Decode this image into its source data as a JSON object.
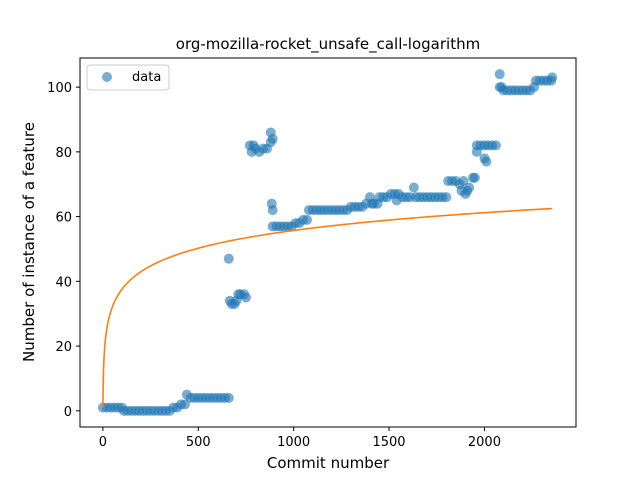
{
  "chart_data": {
    "type": "scatter",
    "title": "org-mozilla-rocket_unsafe_call-logarithm",
    "xlabel": "Commit number",
    "ylabel": "Number of instance of a feature",
    "xlim": [
      -120,
      2480
    ],
    "ylim": [
      -5,
      109
    ],
    "xticks": [
      0,
      500,
      1000,
      1500,
      2000
    ],
    "yticks": [
      0,
      20,
      40,
      60,
      80,
      100
    ],
    "legend": {
      "position": "top-left",
      "entries": [
        "data"
      ]
    },
    "colors": {
      "data": "#1f77b4",
      "fit": "#ff7f0e"
    },
    "series": [
      {
        "name": "data",
        "kind": "scatter",
        "points": [
          [
            0,
            1
          ],
          [
            20,
            1
          ],
          [
            40,
            1
          ],
          [
            60,
            1
          ],
          [
            80,
            1
          ],
          [
            100,
            1
          ],
          [
            110,
            0
          ],
          [
            130,
            0
          ],
          [
            150,
            0
          ],
          [
            170,
            0
          ],
          [
            190,
            0
          ],
          [
            210,
            0
          ],
          [
            230,
            0
          ],
          [
            250,
            0
          ],
          [
            270,
            0
          ],
          [
            290,
            0
          ],
          [
            310,
            0
          ],
          [
            330,
            0
          ],
          [
            350,
            0
          ],
          [
            370,
            1
          ],
          [
            390,
            1
          ],
          [
            410,
            2
          ],
          [
            430,
            2
          ],
          [
            440,
            5
          ],
          [
            460,
            4
          ],
          [
            480,
            4
          ],
          [
            500,
            4
          ],
          [
            520,
            4
          ],
          [
            540,
            4
          ],
          [
            560,
            4
          ],
          [
            580,
            4
          ],
          [
            600,
            4
          ],
          [
            620,
            4
          ],
          [
            640,
            4
          ],
          [
            660,
            4
          ],
          [
            660,
            47
          ],
          [
            665,
            34
          ],
          [
            675,
            33
          ],
          [
            690,
            33
          ],
          [
            700,
            34
          ],
          [
            710,
            36
          ],
          [
            720,
            36
          ],
          [
            740,
            36
          ],
          [
            750,
            35
          ],
          [
            770,
            82
          ],
          [
            780,
            80
          ],
          [
            790,
            82
          ],
          [
            800,
            81
          ],
          [
            820,
            80
          ],
          [
            840,
            81
          ],
          [
            860,
            81
          ],
          [
            880,
            86
          ],
          [
            880,
            83
          ],
          [
            890,
            84
          ],
          [
            885,
            64
          ],
          [
            890,
            62
          ],
          [
            890,
            57
          ],
          [
            910,
            57
          ],
          [
            930,
            57
          ],
          [
            950,
            57
          ],
          [
            970,
            57
          ],
          [
            990,
            57
          ],
          [
            1010,
            58
          ],
          [
            1030,
            58
          ],
          [
            1050,
            59
          ],
          [
            1070,
            59
          ],
          [
            1080,
            62
          ],
          [
            1100,
            62
          ],
          [
            1120,
            62
          ],
          [
            1140,
            62
          ],
          [
            1160,
            62
          ],
          [
            1180,
            62
          ],
          [
            1200,
            62
          ],
          [
            1220,
            62
          ],
          [
            1240,
            62
          ],
          [
            1260,
            62
          ],
          [
            1280,
            62
          ],
          [
            1300,
            63
          ],
          [
            1320,
            63
          ],
          [
            1340,
            63
          ],
          [
            1360,
            63
          ],
          [
            1380,
            64
          ],
          [
            1400,
            66
          ],
          [
            1410,
            64
          ],
          [
            1420,
            64
          ],
          [
            1440,
            64
          ],
          [
            1450,
            66
          ],
          [
            1470,
            66
          ],
          [
            1490,
            66
          ],
          [
            1510,
            67
          ],
          [
            1530,
            67
          ],
          [
            1540,
            65
          ],
          [
            1550,
            67
          ],
          [
            1570,
            66
          ],
          [
            1590,
            66
          ],
          [
            1610,
            66
          ],
          [
            1630,
            69
          ],
          [
            1640,
            66
          ],
          [
            1660,
            66
          ],
          [
            1680,
            66
          ],
          [
            1700,
            66
          ],
          [
            1720,
            66
          ],
          [
            1740,
            66
          ],
          [
            1760,
            66
          ],
          [
            1780,
            66
          ],
          [
            1800,
            66
          ],
          [
            1810,
            71
          ],
          [
            1830,
            71
          ],
          [
            1850,
            71
          ],
          [
            1870,
            70
          ],
          [
            1880,
            68
          ],
          [
            1890,
            71
          ],
          [
            1900,
            67
          ],
          [
            1910,
            68
          ],
          [
            1920,
            69
          ],
          [
            1940,
            72
          ],
          [
            1950,
            72
          ],
          [
            1960,
            82
          ],
          [
            1960,
            80
          ],
          [
            1980,
            82
          ],
          [
            2000,
            82
          ],
          [
            2000,
            78
          ],
          [
            2010,
            77
          ],
          [
            2020,
            82
          ],
          [
            2040,
            82
          ],
          [
            2060,
            82
          ],
          [
            2080,
            104
          ],
          [
            2080,
            100
          ],
          [
            2090,
            100
          ],
          [
            2100,
            99
          ],
          [
            2120,
            99
          ],
          [
            2140,
            99
          ],
          [
            2160,
            99
          ],
          [
            2180,
            99
          ],
          [
            2200,
            99
          ],
          [
            2220,
            99
          ],
          [
            2240,
            99
          ],
          [
            2260,
            100
          ],
          [
            2270,
            102
          ],
          [
            2290,
            102
          ],
          [
            2310,
            102
          ],
          [
            2330,
            102
          ],
          [
            2350,
            102
          ],
          [
            2355,
            103
          ]
        ]
      },
      {
        "kind": "line",
        "model": "a + b*ln(x+1)",
        "a": 1.0,
        "b": 7.92,
        "x_range": [
          0,
          2355
        ]
      }
    ]
  }
}
